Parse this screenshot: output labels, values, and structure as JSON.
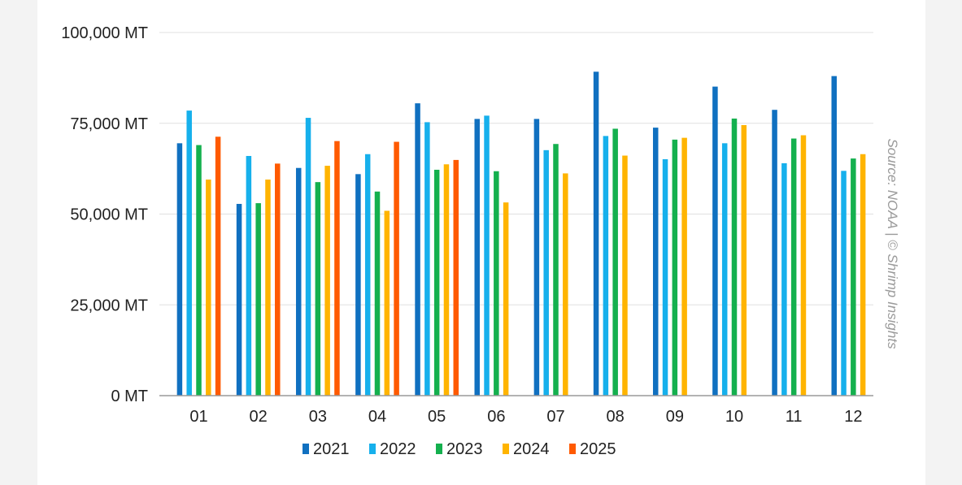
{
  "chart_data": {
    "type": "bar",
    "categories": [
      "01",
      "02",
      "03",
      "04",
      "05",
      "06",
      "07",
      "08",
      "09",
      "10",
      "11",
      "12"
    ],
    "series": [
      {
        "name": "2021",
        "color": "#1070c0",
        "values": [
          69500,
          52800,
          62700,
          61000,
          80500,
          76200,
          76200,
          89200,
          73800,
          85100,
          78700,
          88000
        ]
      },
      {
        "name": "2022",
        "color": "#16b0ec",
        "values": [
          78500,
          66000,
          76500,
          66500,
          75300,
          77100,
          67600,
          71500,
          65100,
          69500,
          64000,
          61900
        ]
      },
      {
        "name": "2023",
        "color": "#14b04e",
        "values": [
          69000,
          53000,
          58800,
          56200,
          62200,
          61800,
          69300,
          73500,
          70500,
          76300,
          70800,
          65300
        ]
      },
      {
        "name": "2024",
        "color": "#ffb400",
        "values": [
          59500,
          59500,
          63300,
          50900,
          63700,
          53200,
          61200,
          66100,
          71000,
          74500,
          71700,
          66500
        ]
      },
      {
        "name": "2025",
        "color": "#ff5a00",
        "values": [
          71300,
          63900,
          70100,
          69900,
          64900,
          null,
          null,
          null,
          null,
          null,
          null,
          null
        ]
      }
    ],
    "yticks": [
      {
        "value": 0,
        "label": "0 MT"
      },
      {
        "value": 25000,
        "label": "25,000 MT"
      },
      {
        "value": 50000,
        "label": "50,000 MT"
      },
      {
        "value": 75000,
        "label": "75,000 MT"
      },
      {
        "value": 100000,
        "label": "100,000 MT"
      }
    ],
    "ylim": [
      0,
      100000
    ],
    "grid": true,
    "legend_position": "bottom-center",
    "source_note": "Source: NOAA | © Shrimp Insights"
  }
}
